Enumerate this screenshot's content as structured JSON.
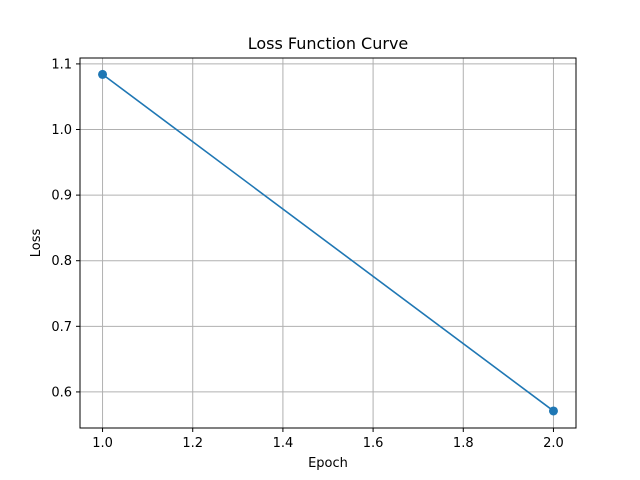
{
  "chart_data": {
    "type": "line",
    "title": "Loss Function Curve",
    "xlabel": "Epoch",
    "ylabel": "Loss",
    "x": [
      1.0,
      2.0
    ],
    "series": [
      {
        "values": [
          1.084,
          0.571
        ],
        "color": "#1f77b4",
        "marker": "circle"
      }
    ],
    "xlim": [
      0.95,
      2.05
    ],
    "ylim": [
      0.545,
      1.109
    ],
    "xticks": [
      1.0,
      1.2,
      1.4,
      1.6,
      1.8,
      2.0
    ],
    "xtick_labels": [
      "1.0",
      "1.2",
      "1.4",
      "1.6",
      "1.8",
      "2.0"
    ],
    "yticks": [
      0.6,
      0.7,
      0.8,
      0.9,
      1.0,
      1.1
    ],
    "ytick_labels": [
      "0.6",
      "0.7",
      "0.8",
      "0.9",
      "1.0",
      "1.1"
    ],
    "grid": true
  }
}
